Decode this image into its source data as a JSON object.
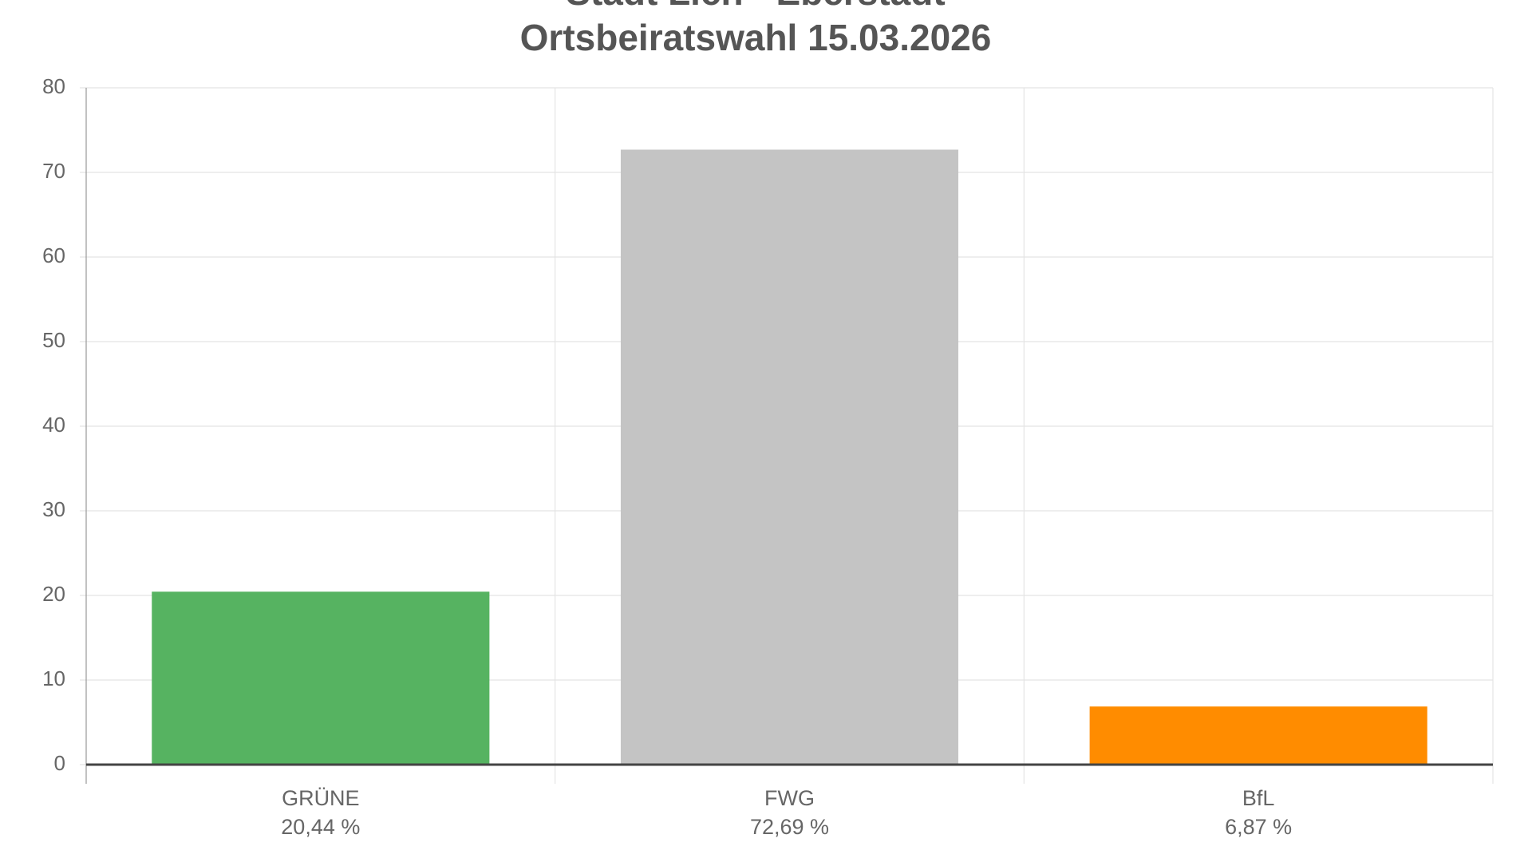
{
  "chart_data": {
    "type": "bar",
    "title": "Stadt Lich - Eberstadt",
    "subtitle": "Ortsbeiratswahl 15.03.2026",
    "categories": [
      "GRÜNE",
      "FWG",
      "BfL"
    ],
    "values": [
      20.44,
      72.69,
      6.87
    ],
    "value_labels": [
      "20,44 %",
      "72,69 %",
      "6,87 %"
    ],
    "colors": [
      "#56b361",
      "#c4c4c4",
      "#ff8c00"
    ],
    "ylim": [
      0,
      80
    ],
    "yticks": [
      0,
      10,
      20,
      30,
      40,
      50,
      60,
      70,
      80
    ],
    "grid": true
  }
}
